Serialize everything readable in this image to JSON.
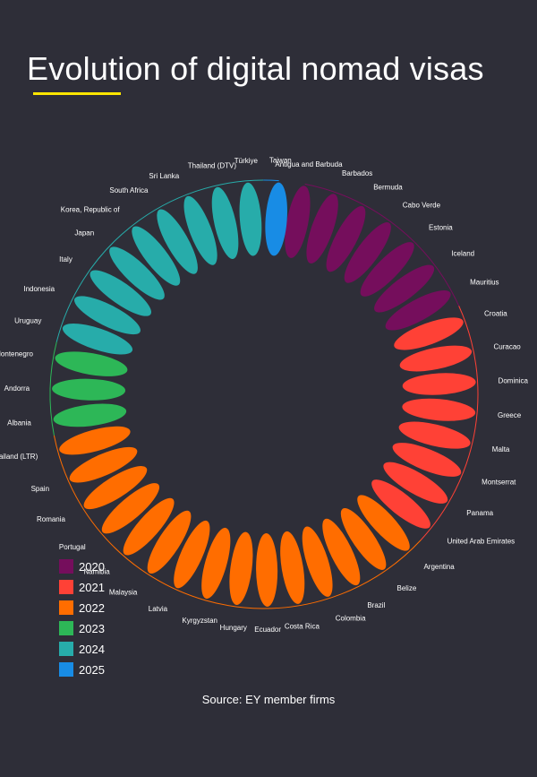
{
  "title": "Evolution of digital nomad visas",
  "source": "Source: EY member firms",
  "colors": {
    "background": "#2e2e38",
    "accent": "#ffe600",
    "2020": "#750e5c",
    "2021": "#ff4136",
    "2022": "#ff6d00",
    "2023": "#2db757",
    "2024": "#27acaa",
    "2025": "#188ce5"
  },
  "chart_data": {
    "type": "radial",
    "title": "Evolution of digital nomad visas",
    "legend": [
      {
        "year": "2020",
        "label": "2020"
      },
      {
        "year": "2021",
        "label": "2021"
      },
      {
        "year": "2022",
        "label": "2022"
      },
      {
        "year": "2023",
        "label": "2023"
      },
      {
        "year": "2024",
        "label": "2024"
      },
      {
        "year": "2025",
        "label": "2025"
      }
    ],
    "countries": [
      {
        "name": "Antigua and Barbuda",
        "year": "2020"
      },
      {
        "name": "Barbados",
        "year": "2020"
      },
      {
        "name": "Bermuda",
        "year": "2020"
      },
      {
        "name": "Cabo Verde",
        "year": "2020"
      },
      {
        "name": "Estonia",
        "year": "2020"
      },
      {
        "name": "Iceland",
        "year": "2020"
      },
      {
        "name": "Mauritius",
        "year": "2020"
      },
      {
        "name": "Croatia",
        "year": "2021"
      },
      {
        "name": "Curacao",
        "year": "2021"
      },
      {
        "name": "Dominica",
        "year": "2021"
      },
      {
        "name": "Greece",
        "year": "2021"
      },
      {
        "name": "Malta",
        "year": "2021"
      },
      {
        "name": "Montserrat",
        "year": "2021"
      },
      {
        "name": "Panama",
        "year": "2021"
      },
      {
        "name": "United Arab Emirates",
        "year": "2021"
      },
      {
        "name": "Argentina",
        "year": "2022"
      },
      {
        "name": "Belize",
        "year": "2022"
      },
      {
        "name": "Brazil",
        "year": "2022"
      },
      {
        "name": "Colombia",
        "year": "2022"
      },
      {
        "name": "Costa Rica",
        "year": "2022"
      },
      {
        "name": "Ecuador",
        "year": "2022"
      },
      {
        "name": "Hungary",
        "year": "2022"
      },
      {
        "name": "Kyrgyzstan",
        "year": "2022"
      },
      {
        "name": "Latvia",
        "year": "2022"
      },
      {
        "name": "Malaysia",
        "year": "2022"
      },
      {
        "name": "Namibia",
        "year": "2022"
      },
      {
        "name": "Portugal",
        "year": "2022"
      },
      {
        "name": "Romania",
        "year": "2022"
      },
      {
        "name": "Spain",
        "year": "2022"
      },
      {
        "name": "Thailand (LTR)",
        "year": "2022"
      },
      {
        "name": "Albania",
        "year": "2023"
      },
      {
        "name": "Andorra",
        "year": "2023"
      },
      {
        "name": "Montenegro",
        "year": "2023"
      },
      {
        "name": "Uruguay",
        "year": "2024"
      },
      {
        "name": "Indonesia",
        "year": "2024"
      },
      {
        "name": "Italy",
        "year": "2024"
      },
      {
        "name": "Japan",
        "year": "2024"
      },
      {
        "name": "Korea, Republic of",
        "year": "2024"
      },
      {
        "name": "South Africa",
        "year": "2024"
      },
      {
        "name": "Sri Lanka",
        "year": "2024"
      },
      {
        "name": "Thailand (DTV)",
        "year": "2024"
      },
      {
        "name": "Türkiye",
        "year": "2024"
      },
      {
        "name": "Taiwan",
        "year": "2025"
      }
    ]
  }
}
